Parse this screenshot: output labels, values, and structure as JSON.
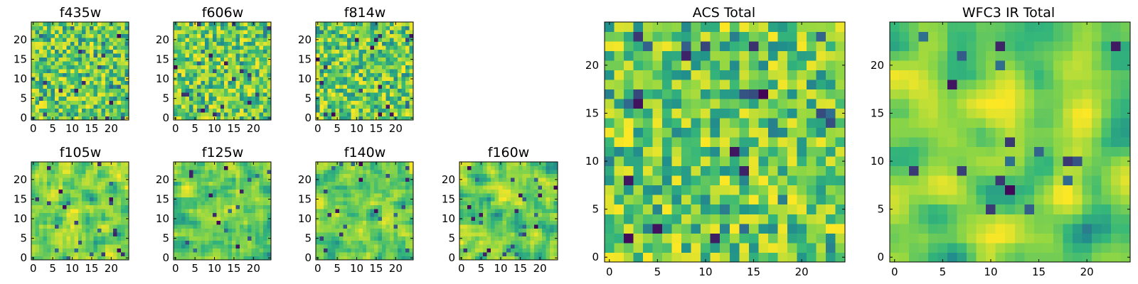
{
  "figure": {
    "colormap": [
      "#440154",
      "#31688e",
      "#21918c",
      "#35b779",
      "#90d743",
      "#fde725"
    ]
  },
  "chart_data": [
    {
      "type": "heatmap",
      "title": "f435w",
      "grid_size": 25,
      "seed": 11,
      "x_ticks": [
        0,
        5,
        10,
        15,
        20
      ],
      "y_ticks": [
        0,
        5,
        10,
        15,
        20
      ],
      "xlim": [
        -0.5,
        24.5
      ],
      "ylim": [
        -0.5,
        24.5
      ],
      "smooth": 0
    },
    {
      "type": "heatmap",
      "title": "f606w",
      "grid_size": 25,
      "seed": 23,
      "x_ticks": [
        0,
        5,
        10,
        15,
        20
      ],
      "y_ticks": [
        0,
        5,
        10,
        15,
        20
      ],
      "xlim": [
        -0.5,
        24.5
      ],
      "ylim": [
        -0.5,
        24.5
      ],
      "smooth": 0
    },
    {
      "type": "heatmap",
      "title": "f814w",
      "grid_size": 25,
      "seed": 37,
      "x_ticks": [
        0,
        5,
        10,
        15,
        20
      ],
      "y_ticks": [
        0,
        5,
        10,
        15,
        20
      ],
      "xlim": [
        -0.5,
        24.5
      ],
      "ylim": [
        -0.5,
        24.5
      ],
      "smooth": 0
    },
    {
      "type": "heatmap",
      "title": "f105w",
      "grid_size": 25,
      "seed": 41,
      "x_ticks": [
        0,
        5,
        10,
        15,
        20
      ],
      "y_ticks": [
        0,
        5,
        10,
        15,
        20
      ],
      "xlim": [
        -0.5,
        24.5
      ],
      "ylim": [
        -0.5,
        24.5
      ],
      "smooth": 1
    },
    {
      "type": "heatmap",
      "title": "f125w",
      "grid_size": 25,
      "seed": 53,
      "x_ticks": [
        0,
        5,
        10,
        15,
        20
      ],
      "y_ticks": [
        0,
        5,
        10,
        15,
        20
      ],
      "xlim": [
        -0.5,
        24.5
      ],
      "ylim": [
        -0.5,
        24.5
      ],
      "smooth": 1
    },
    {
      "type": "heatmap",
      "title": "f140w",
      "grid_size": 25,
      "seed": 67,
      "x_ticks": [
        0,
        5,
        10,
        15,
        20
      ],
      "y_ticks": [
        0,
        5,
        10,
        15,
        20
      ],
      "xlim": [
        -0.5,
        24.5
      ],
      "ylim": [
        -0.5,
        24.5
      ],
      "smooth": 1
    },
    {
      "type": "heatmap",
      "title": "f160w",
      "grid_size": 25,
      "seed": 79,
      "x_ticks": [
        0,
        5,
        10,
        15,
        20
      ],
      "y_ticks": [
        0,
        5,
        10,
        15,
        20
      ],
      "xlim": [
        -0.5,
        24.5
      ],
      "ylim": [
        -0.5,
        24.5
      ],
      "smooth": 1
    },
    {
      "type": "heatmap",
      "title": "ACS Total",
      "grid_size": 25,
      "seed": 83,
      "x_ticks": [
        0,
        5,
        10,
        15,
        20
      ],
      "y_ticks": [
        0,
        5,
        10,
        15,
        20
      ],
      "xlim": [
        -0.5,
        24.5
      ],
      "ylim": [
        -0.5,
        24.5
      ],
      "smooth": 0
    },
    {
      "type": "heatmap",
      "title": "WFC3 IR Total",
      "grid_size": 25,
      "seed": 97,
      "x_ticks": [
        0,
        5,
        10,
        15,
        20
      ],
      "y_ticks": [
        0,
        5,
        10,
        15,
        20
      ],
      "xlim": [
        -0.5,
        24.5
      ],
      "ylim": [
        -0.5,
        24.5
      ],
      "smooth": 2
    }
  ]
}
